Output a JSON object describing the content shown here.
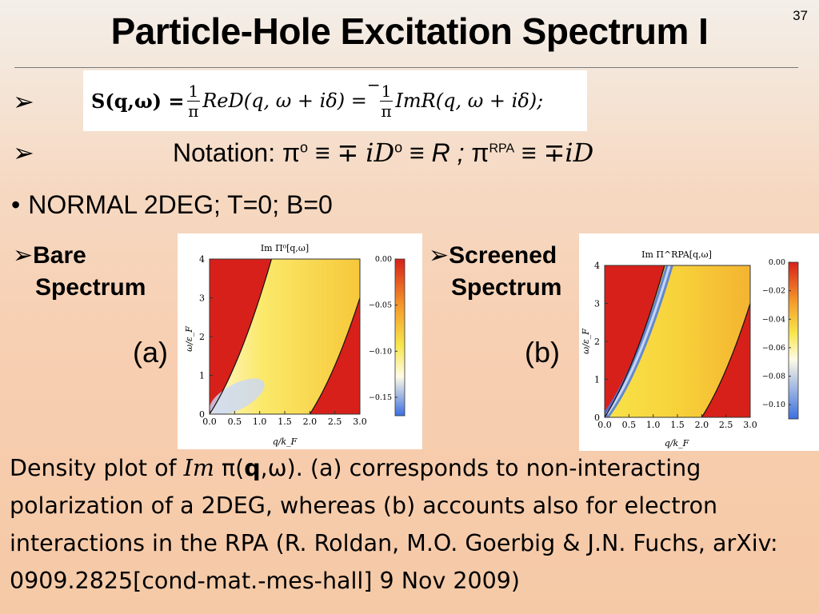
{
  "slide": {
    "title": "Particle-Hole Excitation Spectrum I",
    "page_number": "37",
    "equation": {
      "lhs": "S(q,ω) = ",
      "frac_num": "1",
      "frac_den": "π",
      "minus": "−",
      "mid1": "ReD(q, ω + iδ) = ",
      "mid2": "ImR(q, ω + iδ);",
      "sign_over": "_"
    },
    "bullets": {
      "arrow": "➢",
      "notation_label": "Notation: ",
      "pi": "π",
      "sup_o": "o",
      "equiv": " ≡ ",
      "mp": "∓",
      "iD": "iD",
      "R": "R",
      "semi": "  ;  ",
      "sup_rpa": "RPA",
      "normal": "NORMAL 2DEG; T=0; B=0",
      "dot": "•"
    },
    "labels": {
      "bare_line1": "Bare",
      "bare_line2": "Spectrum",
      "screened_line1": "Screened",
      "screened_line2": "Spectrum",
      "a": "(a)",
      "b": "(b)"
    },
    "caption": {
      "p1": "Density plot of ",
      "im": "Im",
      "p2": " π(",
      "q": "q",
      "p3": ",ω). (a) corresponds to non-interacting polarization of a 2DEG, whereas (b) accounts also for electron interactions in the RPA (R. Roldan, M.O. Goerbig & J.N. Fuchs, arXiv: 0909.2825[cond-mat.-mes-hall] 9 Nov 2009)"
    }
  },
  "chart_data": [
    {
      "type": "heatmap",
      "title": "Im Π⁰[q,ω]",
      "xlabel": "q/k_F",
      "ylabel": "ω/ε_F",
      "x_ticks": [
        "0.0",
        "0.5",
        "1.0",
        "1.5",
        "2.0",
        "2.5",
        "3.0"
      ],
      "y_ticks": [
        "0",
        "1",
        "2",
        "3",
        "4"
      ],
      "xlim": [
        0,
        3.0
      ],
      "ylim": [
        0,
        4
      ],
      "colorbar_ticks": [
        "0.00",
        "−0.05",
        "−0.10",
        "−0.15"
      ],
      "colorbar_range": [
        -0.17,
        0.0
      ],
      "boundaries": [
        "ω = q² + 2q",
        "ω = q² − 2q"
      ]
    },
    {
      "type": "heatmap",
      "title": "Im Π^RPA[q,ω]",
      "xlabel": "q/k_F",
      "ylabel": "ω/ε_F",
      "x_ticks": [
        "0.0",
        "0.5",
        "1.0",
        "1.5",
        "2.0",
        "2.5",
        "3.0"
      ],
      "y_ticks": [
        "0",
        "1",
        "2",
        "3",
        "4"
      ],
      "xlim": [
        0,
        3.0
      ],
      "ylim": [
        0,
        4
      ],
      "colorbar_ticks": [
        "0.00",
        "−0.02",
        "−0.04",
        "−0.06",
        "−0.08",
        "−0.10"
      ],
      "colorbar_range": [
        -0.11,
        0.0
      ],
      "boundaries": [
        "ω = q² + 2q",
        "ω = q² − 2q"
      ]
    }
  ],
  "colors": {
    "hot": "#d8201a",
    "mid": "#f7e64a",
    "pale": "#fff9d0",
    "cold": "#3b6fe0"
  }
}
